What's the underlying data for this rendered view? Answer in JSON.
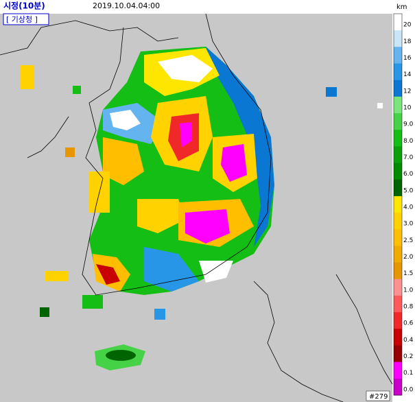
{
  "header": {
    "title": "시정(10분)",
    "datetime": "2019.10.04.04:00",
    "source": "[ 기상청 ]"
  },
  "legend": {
    "unit": "km",
    "items": [
      {
        "label": "20",
        "color": "#ffffff"
      },
      {
        "label": "18",
        "color": "#c8e6f8"
      },
      {
        "label": "16",
        "color": "#64b4f0"
      },
      {
        "label": "14",
        "color": "#2896e6"
      },
      {
        "label": "12",
        "color": "#0a78d2"
      },
      {
        "label": "10",
        "color": "#78e678"
      },
      {
        "label": "9.0",
        "color": "#46d246"
      },
      {
        "label": "8.0",
        "color": "#14be14"
      },
      {
        "label": "7.0",
        "color": "#0aa00a"
      },
      {
        "label": "6.0",
        "color": "#008c00"
      },
      {
        "label": "5.0",
        "color": "#006400"
      },
      {
        "label": "4.0",
        "color": "#ffe600"
      },
      {
        "label": "3.0",
        "color": "#ffd200"
      },
      {
        "label": "2.5",
        "color": "#ffbe00"
      },
      {
        "label": "2.0",
        "color": "#f0aa00"
      },
      {
        "label": "1.5",
        "color": "#e69600"
      },
      {
        "label": "1.0",
        "color": "#ff9090"
      },
      {
        "label": "0.8",
        "color": "#ff5a5a"
      },
      {
        "label": "0.6",
        "color": "#f02828"
      },
      {
        "label": "0.4",
        "color": "#c80000"
      },
      {
        "label": "0.2",
        "color": "#960000"
      },
      {
        "label": "0.1",
        "color": "#ff00ff"
      },
      {
        "label": "0.0",
        "color": "#c800c8"
      }
    ]
  },
  "footer": {
    "id": "#279"
  }
}
